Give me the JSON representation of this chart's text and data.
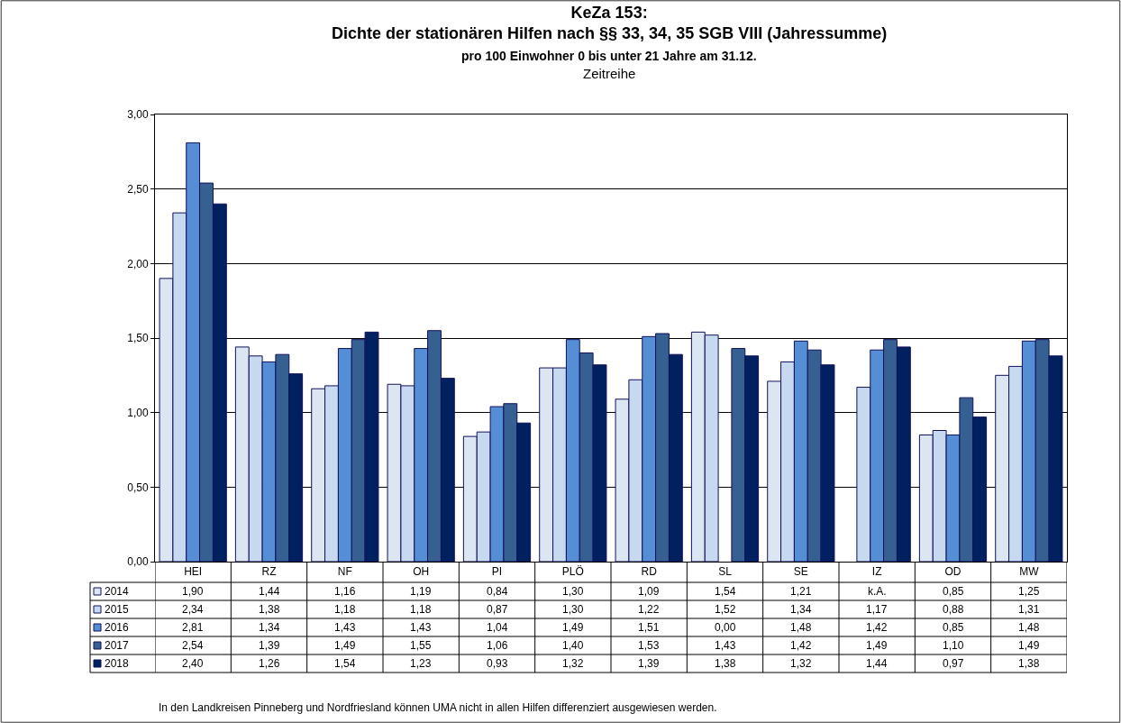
{
  "chart_data": {
    "type": "bar",
    "title": "KeZa 153:\nDichte der stationären Hilfen nach §§ 33, 34, 35 SGB VIII (Jahressumme)",
    "subtitle": "pro 100 Einwohner 0 bis unter 21 Jahre am 31.12.\nZeitreihe",
    "categories": [
      "HEI",
      "RZ",
      "NF",
      "OH",
      "PI",
      "PLÖ",
      "RD",
      "SL",
      "SE",
      "IZ",
      "OD",
      "MW"
    ],
    "series": [
      {
        "name": "2014",
        "color": "#dce6f2",
        "values": [
          1.9,
          1.44,
          1.16,
          1.19,
          0.84,
          1.3,
          1.09,
          1.54,
          1.21,
          null,
          0.85,
          1.25
        ],
        "value_labels": [
          "1,90",
          "1,44",
          "1,16",
          "1,19",
          "0,84",
          "1,30",
          "1,09",
          "1,54",
          "1,21",
          "k.A.",
          "0,85",
          "1,25"
        ]
      },
      {
        "name": "2015",
        "color": "#c6d9f1",
        "values": [
          2.34,
          1.38,
          1.18,
          1.18,
          0.87,
          1.3,
          1.22,
          1.52,
          1.34,
          1.17,
          0.88,
          1.31
        ],
        "value_labels": [
          "2,34",
          "1,38",
          "1,18",
          "1,18",
          "0,87",
          "1,30",
          "1,22",
          "1,52",
          "1,34",
          "1,17",
          "0,88",
          "1,31"
        ]
      },
      {
        "name": "2016",
        "color": "#558ed5",
        "values": [
          2.81,
          1.34,
          1.43,
          1.43,
          1.04,
          1.49,
          1.51,
          0.0,
          1.48,
          1.42,
          0.85,
          1.48
        ],
        "value_labels": [
          "2,81",
          "1,34",
          "1,43",
          "1,43",
          "1,04",
          "1,49",
          "1,51",
          "0,00",
          "1,48",
          "1,42",
          "0,85",
          "1,48"
        ]
      },
      {
        "name": "2017",
        "color": "#376092",
        "values": [
          2.54,
          1.39,
          1.49,
          1.55,
          1.06,
          1.4,
          1.53,
          1.43,
          1.42,
          1.49,
          1.1,
          1.49
        ],
        "value_labels": [
          "2,54",
          "1,39",
          "1,49",
          "1,55",
          "1,06",
          "1,40",
          "1,53",
          "1,43",
          "1,42",
          "1,49",
          "1,10",
          "1,49"
        ]
      },
      {
        "name": "2018",
        "color": "#002060",
        "values": [
          2.4,
          1.26,
          1.54,
          1.23,
          0.93,
          1.32,
          1.39,
          1.38,
          1.32,
          1.44,
          0.97,
          1.38
        ],
        "value_labels": [
          "2,40",
          "1,26",
          "1,54",
          "1,23",
          "0,93",
          "1,32",
          "1,39",
          "1,38",
          "1,32",
          "1,44",
          "0,97",
          "1,38"
        ]
      }
    ],
    "ylim": [
      0,
      3
    ],
    "yticks": [
      {
        "value": 0,
        "label": "0,00"
      },
      {
        "value": 0.5,
        "label": "0,50"
      },
      {
        "value": 1,
        "label": "1,00"
      },
      {
        "value": 1.5,
        "label": "1,50"
      },
      {
        "value": 2,
        "label": "2,00"
      },
      {
        "value": 2.5,
        "label": "2,50"
      },
      {
        "value": 3,
        "label": "3,00"
      }
    ],
    "grid": "y",
    "legend": "bottom",
    "annotations": [
      "In den Landkreisen Pinneberg und Nordfriesland können UMA nicht in allen Hilfen differenziert ausgewiesen werden."
    ]
  }
}
